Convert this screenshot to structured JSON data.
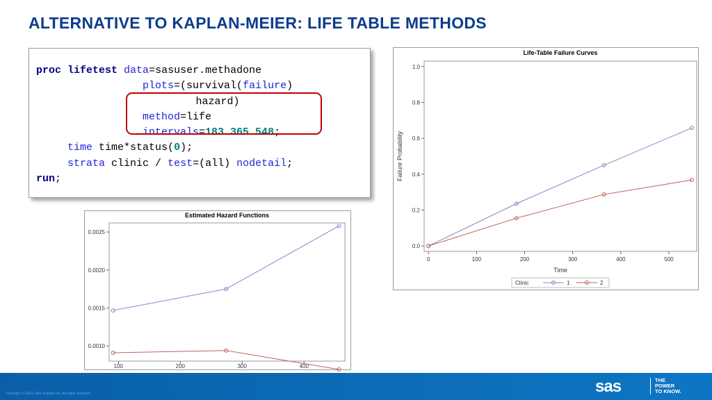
{
  "header": {
    "title": "ALTERNATIVE TO KAPLAN-MEIER:  LIFE TABLE METHODS"
  },
  "code": {
    "lines": [
      [
        "proc lifetest",
        "data",
        "=sasuser.methadone"
      ],
      [
        "plots",
        "=(survival(",
        "failure",
        ")"
      ],
      [
        "hazard)"
      ],
      [
        "method",
        "=life"
      ],
      [
        "intervals",
        "=",
        "183 365 548",
        ";"
      ],
      [
        "time",
        "time*status(",
        "0",
        ");"
      ],
      [
        "strata",
        "clinic /",
        "test",
        "=(all)",
        "nodetail",
        ";"
      ],
      [
        "run",
        ";"
      ]
    ]
  },
  "chart_data": [
    {
      "type": "line",
      "title": "Estimated Hazard Functions",
      "x": [
        91.5,
        274,
        456.5
      ],
      "series": [
        {
          "color": "#7b8cc8",
          "values": [
            0.001468,
            0.00175,
            0.00258
          ]
        },
        {
          "color": "#c0605a",
          "values": [
            0.00091,
            0.00094,
            0.00069
          ]
        }
      ],
      "xlim": [
        85,
        466
      ],
      "xticks": [
        100,
        200,
        300,
        400
      ],
      "ylim": [
        0.0008,
        0.00262
      ],
      "yticks": [
        {
          "value": 0.001,
          "label": "0.0010"
        },
        0.0015,
        {
          "value": 0.002,
          "label": "0.0020"
        },
        0.0025
      ],
      "grid": false
    },
    {
      "type": "line",
      "title": "Life-Table Failure Curves",
      "x_label": "Time",
      "y_label": "Failure Probability",
      "legend_title": "Clinic",
      "legend": "bottom",
      "x": [
        0,
        183,
        365,
        548
      ],
      "series": [
        {
          "name": "1",
          "color": "#7b8cc8",
          "values": [
            0,
            0.236,
            0.45,
            0.658
          ]
        },
        {
          "name": "2",
          "color": "#c0605a",
          "values": [
            0,
            0.155,
            0.287,
            0.368
          ]
        }
      ],
      "xlim": [
        -9,
        558
      ],
      "xticks": [
        0,
        100,
        200,
        300,
        400,
        500
      ],
      "ylim": [
        -0.03,
        1.03
      ],
      "yticks": [
        {
          "value": 0,
          "label": "0.0"
        },
        0.2,
        0.4,
        0.6,
        0.8,
        {
          "value": 1,
          "label": "1.0"
        }
      ],
      "grid": false
    }
  ],
  "footer": {
    "copyright": "Copyright © 2014, SAS Institute Inc. All rights reserved.",
    "logo": "sas",
    "tagline": [
      "THE",
      "POWER",
      "TO KNOW."
    ]
  }
}
